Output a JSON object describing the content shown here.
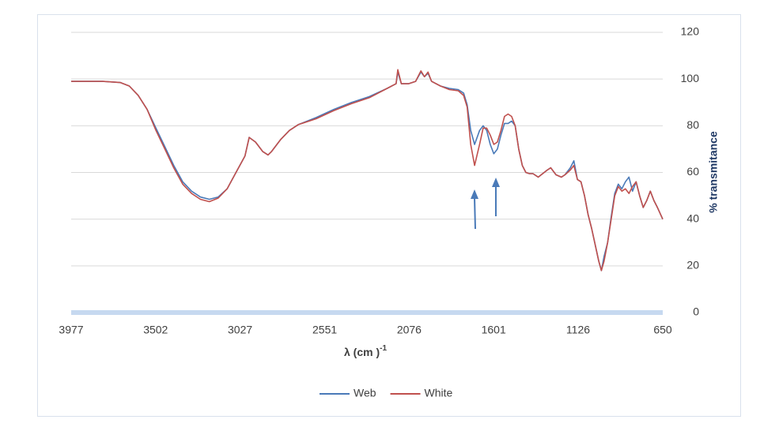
{
  "chart_data": {
    "type": "line",
    "xlabel": "λ (cm )",
    "xlabel_superscript": "-1",
    "ylabel": "% transmitance",
    "xlim": [
      3977,
      650
    ],
    "xticks": [
      3977,
      3502,
      3027,
      2551,
      2076,
      1601,
      1126,
      650
    ],
    "ylim": [
      0,
      120
    ],
    "yticks": [
      0,
      20,
      40,
      60,
      80,
      100,
      120
    ],
    "grid": true,
    "legend": "bottom",
    "x": [
      3977,
      3900,
      3800,
      3700,
      3650,
      3600,
      3550,
      3500,
      3450,
      3400,
      3350,
      3300,
      3250,
      3200,
      3150,
      3100,
      3050,
      3000,
      2976,
      2940,
      2900,
      2870,
      2850,
      2800,
      2750,
      2700,
      2600,
      2500,
      2400,
      2300,
      2200,
      2150,
      2140,
      2120,
      2080,
      2040,
      2010,
      1990,
      1970,
      1950,
      1900,
      1850,
      1800,
      1770,
      1750,
      1730,
      1708,
      1680,
      1660,
      1640,
      1620,
      1600,
      1580,
      1560,
      1540,
      1520,
      1500,
      1480,
      1460,
      1440,
      1420,
      1400,
      1380,
      1350,
      1300,
      1280,
      1250,
      1220,
      1200,
      1170,
      1150,
      1130,
      1110,
      1090,
      1070,
      1050,
      1030,
      1010,
      995,
      980,
      960,
      940,
      920,
      900,
      880,
      860,
      840,
      820,
      800,
      780,
      760,
      740,
      720,
      700,
      680,
      650
    ],
    "series": [
      {
        "name": "Web",
        "color": "#4a7ab8",
        "values": [
          99,
          99,
          99,
          98.5,
          97,
          93,
          87,
          79,
          71,
          63,
          56,
          52,
          49.5,
          48.5,
          49.5,
          53,
          60,
          67,
          75,
          73,
          69,
          67.5,
          69,
          74,
          78,
          80.5,
          83.5,
          87,
          90,
          92.5,
          96,
          98,
          103,
          98,
          98,
          99,
          103,
          101,
          102.5,
          99,
          97,
          96,
          95.5,
          94,
          89,
          78,
          72,
          78,
          80,
          78,
          72,
          68,
          70,
          76,
          81,
          81,
          82,
          80,
          70,
          63,
          60,
          59.5,
          59.5,
          58,
          61,
          62,
          59,
          58,
          59,
          62,
          65,
          57,
          56,
          50,
          42,
          36,
          29,
          22,
          18,
          24,
          30,
          41,
          51,
          55,
          53,
          56,
          58,
          52,
          56,
          50,
          45,
          48,
          52,
          48,
          45,
          40
        ]
      },
      {
        "name": "White",
        "color": "#c0504d",
        "values": [
          99,
          99,
          99,
          98.5,
          97,
          93,
          87,
          78,
          70,
          62,
          55,
          51,
          48.5,
          47.5,
          49,
          53,
          60,
          67,
          75,
          73,
          69,
          67.5,
          69,
          74,
          78,
          80.5,
          83,
          86.5,
          89.5,
          92,
          96,
          98,
          104,
          98,
          98,
          99,
          103.5,
          101,
          103,
          99,
          97,
          95.5,
          95,
          93,
          88,
          72,
          63,
          72,
          79,
          79,
          76,
          72,
          73,
          78,
          84,
          85,
          84,
          80,
          70,
          63,
          60,
          59.5,
          59.5,
          58,
          61,
          62,
          59,
          58,
          59,
          61,
          63,
          57,
          56,
          50,
          42,
          36,
          29,
          22,
          18,
          22,
          30,
          40,
          50,
          54,
          52,
          53,
          51,
          54,
          56,
          50,
          45,
          48,
          52,
          48,
          45,
          40
        ]
      }
    ]
  }
}
